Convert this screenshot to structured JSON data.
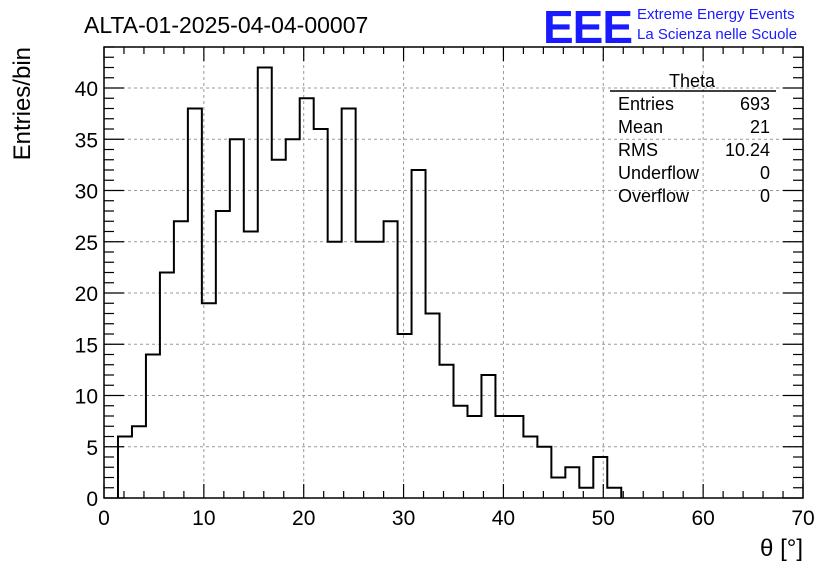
{
  "chart_data": {
    "type": "bar",
    "title": "ALTA-01-2025-04-04-00007",
    "xlabel": "θ [°]",
    "ylabel": "Entries/bin",
    "xlim": [
      0,
      70
    ],
    "ylim": [
      0,
      44
    ],
    "bin_width": 1.4,
    "bin_start": 1.4,
    "values": [
      6,
      7,
      14,
      22,
      27,
      38,
      19,
      28,
      35,
      26,
      42,
      33,
      35,
      39,
      36,
      25,
      38,
      25,
      25,
      27,
      16,
      32,
      18,
      13,
      9,
      8,
      12,
      8,
      8,
      6,
      5,
      2,
      3,
      1,
      4,
      1
    ],
    "x_ticks": [
      "0",
      "10",
      "20",
      "30",
      "40",
      "50",
      "60",
      "70"
    ],
    "y_ticks": [
      "0",
      "5",
      "10",
      "15",
      "20",
      "25",
      "30",
      "35",
      "40"
    ],
    "grid": true,
    "line_color": "#000000",
    "stats_box": {
      "title": "Theta",
      "rows": [
        {
          "label": "Entries",
          "value": "693"
        },
        {
          "label": "Mean",
          "value": "21"
        },
        {
          "label": "RMS",
          "value": "10.24"
        },
        {
          "label": "Underflow",
          "value": "0"
        },
        {
          "label": "Overflow",
          "value": "0"
        }
      ]
    }
  },
  "logo": {
    "mark": "EEE",
    "line1": "Extreme Energy Events",
    "line2": "La Scienza nelle Scuole",
    "color": "#1a1aff"
  }
}
